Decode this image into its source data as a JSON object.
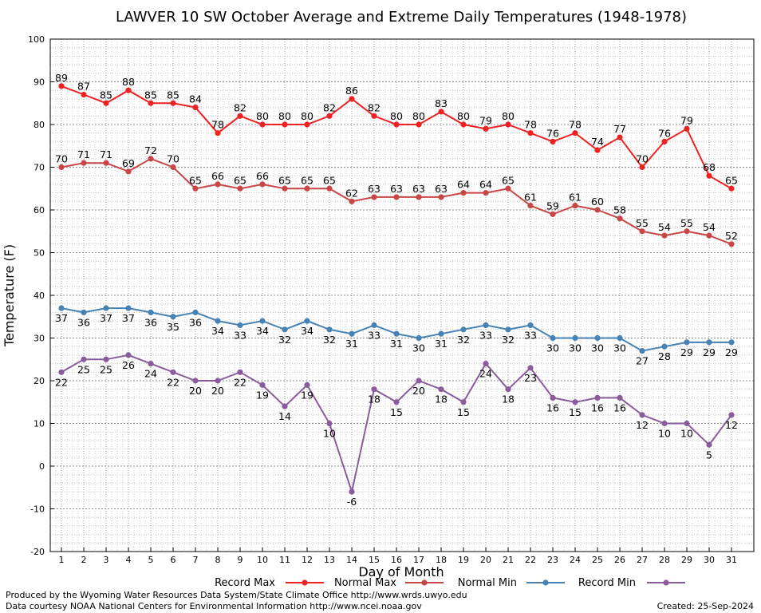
{
  "chart_data": {
    "type": "line",
    "title": "LAWVER 10 SW October Average and Extreme Daily Temperatures (1948-1978)",
    "xlabel": "Day of Month",
    "ylabel": "Temperature (F)",
    "ylim": [
      -20,
      100
    ],
    "yticks": [
      "-20",
      "-10",
      "0",
      "10",
      "20",
      "30",
      "40",
      "50",
      "60",
      "70",
      "80",
      "90",
      "100"
    ],
    "x": [
      1,
      2,
      3,
      4,
      5,
      6,
      7,
      8,
      9,
      10,
      11,
      12,
      13,
      14,
      15,
      16,
      17,
      18,
      19,
      20,
      21,
      22,
      23,
      24,
      25,
      26,
      27,
      28,
      29,
      30,
      31
    ],
    "grid": true,
    "legend_position": "bottom",
    "series": [
      {
        "name": "Record Max",
        "color": "#ee2222",
        "values": [
          89,
          87,
          85,
          88,
          85,
          85,
          84,
          78,
          82,
          80,
          80,
          80,
          82,
          86,
          82,
          80,
          80,
          83,
          80,
          79,
          80,
          78,
          76,
          78,
          74,
          77,
          70,
          76,
          79,
          68,
          65
        ]
      },
      {
        "name": "Normal Max",
        "color": "#c84646",
        "values": [
          70,
          71,
          71,
          69,
          72,
          70,
          65,
          66,
          65,
          66,
          65,
          65,
          65,
          62,
          63,
          63,
          63,
          63,
          64,
          64,
          65,
          61,
          59,
          61,
          60,
          58,
          55,
          54,
          55,
          54,
          52
        ]
      },
      {
        "name": "Normal Min",
        "color": "#4682b4",
        "values": [
          37,
          36,
          37,
          37,
          36,
          35,
          36,
          34,
          33,
          34,
          32,
          34,
          32,
          31,
          33,
          31,
          30,
          31,
          32,
          33,
          32,
          33,
          30,
          30,
          30,
          30,
          27,
          28,
          29,
          29,
          29
        ]
      },
      {
        "name": "Record Min",
        "color": "#8a5c9c",
        "values": [
          22,
          25,
          25,
          26,
          24,
          22,
          20,
          20,
          22,
          19,
          14,
          19,
          10,
          -6,
          18,
          15,
          20,
          18,
          15,
          24,
          18,
          23,
          16,
          15,
          16,
          16,
          12,
          10,
          10,
          5,
          12
        ]
      }
    ]
  },
  "footer": {
    "left_line1": "Produced by the Wyoming Water Resources Data System/State Climate Office http://www.wrds.uwyo.edu",
    "left_line2": "Data courtesy NOAA National Centers for Environmental Information http://www.ncei.noaa.gov",
    "created": "Created:  25-Sep-2024"
  }
}
